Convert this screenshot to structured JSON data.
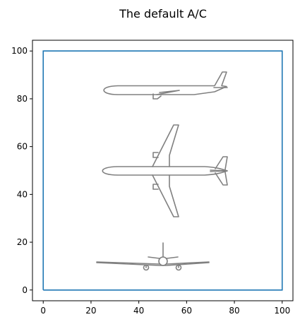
{
  "chart_data": {
    "type": "line",
    "title": "The default A/C",
    "xlabel": "",
    "ylabel": "",
    "xlim": [
      -4.5,
      104.5
    ],
    "ylim": [
      -4.5,
      104.5
    ],
    "xticks": [
      0,
      20,
      40,
      60,
      80,
      100
    ],
    "yticks": [
      0,
      20,
      40,
      60,
      80,
      100
    ],
    "grid": false,
    "series": [
      {
        "x": [
          0,
          100,
          100,
          0,
          0
        ],
        "y": [
          0,
          0,
          100,
          100,
          0
        ],
        "color": "#1f77b4"
      }
    ],
    "aircraft": {
      "color": "#808080",
      "side_view_center": [
        50,
        85
      ],
      "top_view_center": [
        50,
        50
      ],
      "front_view_center": [
        50,
        12
      ]
    }
  }
}
